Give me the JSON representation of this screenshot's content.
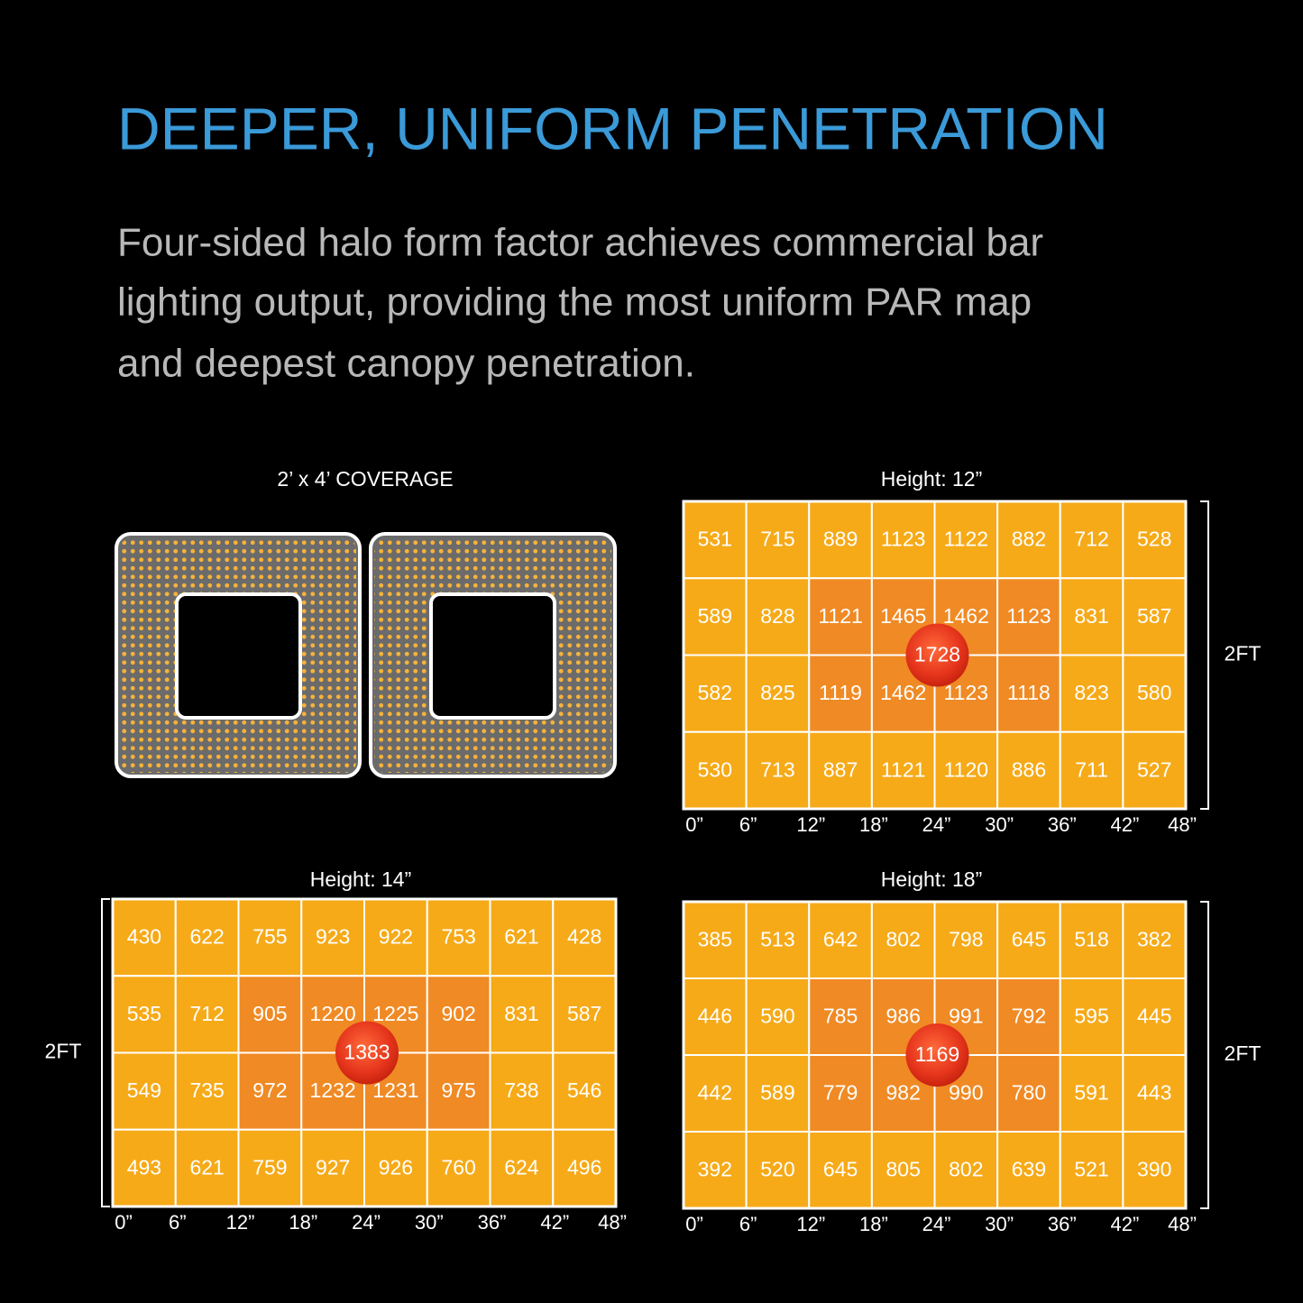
{
  "header": {
    "title": "DEEPER, UNIFORM PENETRATION",
    "description": [
      "Four-sided halo form factor achieves commercial bar",
      "lighting output, providing the most uniform PAR map",
      "and deepest canopy penetration."
    ]
  },
  "coverage": {
    "label": "2’ x 4’ COVERAGE"
  },
  "maps": [
    {
      "title": "Height: 12”",
      "side_label": "2FT",
      "center": 1728,
      "x_labels": [
        "0”",
        "6”",
        "12”",
        "18”",
        "24”",
        "30”",
        "36”",
        "42”",
        "48”"
      ],
      "rows": [
        [
          531,
          715,
          889,
          1123,
          1122,
          882,
          712,
          528
        ],
        [
          589,
          828,
          1121,
          1465,
          1462,
          1123,
          831,
          587
        ],
        [
          582,
          825,
          1119,
          1462,
          1123,
          1118,
          823,
          580
        ],
        [
          530,
          713,
          887,
          1121,
          1120,
          886,
          711,
          527
        ]
      ]
    },
    {
      "title": "Height: 14”",
      "side_label": "2FT",
      "center": 1383,
      "x_labels": [
        "0”",
        "6”",
        "12”",
        "18”",
        "24”",
        "30”",
        "36”",
        "42”",
        "48”"
      ],
      "rows": [
        [
          430,
          622,
          755,
          923,
          922,
          753,
          621,
          428
        ],
        [
          535,
          712,
          905,
          1220,
          1225,
          902,
          831,
          587
        ],
        [
          549,
          735,
          972,
          1232,
          1231,
          975,
          738,
          546
        ],
        [
          493,
          621,
          759,
          927,
          926,
          760,
          624,
          496
        ]
      ]
    },
    {
      "title": "Height: 18”",
      "side_label": "2FT",
      "center": 1169,
      "x_labels": [
        "0”",
        "6”",
        "12”",
        "18”",
        "24”",
        "30”",
        "36”",
        "42”",
        "48”"
      ],
      "rows": [
        [
          385,
          513,
          642,
          802,
          798,
          645,
          518,
          382
        ],
        [
          446,
          590,
          785,
          986,
          991,
          792,
          595,
          445
        ],
        [
          442,
          589,
          779,
          982,
          990,
          780,
          591,
          443
        ],
        [
          392,
          520,
          645,
          805,
          802,
          639,
          521,
          390
        ]
      ]
    }
  ]
}
